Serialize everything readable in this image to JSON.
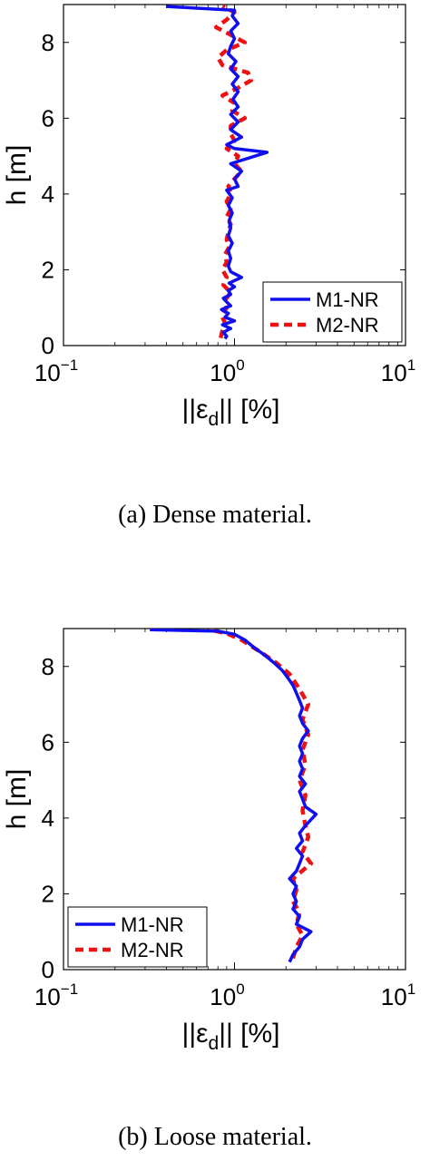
{
  "colors": {
    "m1": "#1010ee",
    "m2": "#ee1111",
    "axis": "#000000"
  },
  "chart_data": [
    {
      "type": "line",
      "caption": "(a) Dense material.",
      "xlabel_pre": "||ε",
      "xlabel_sub": "d",
      "xlabel_post": "|| [%]",
      "ylabel": "h [m]",
      "xscale": "log",
      "xlim": [
        0.1,
        10
      ],
      "ylim": [
        0,
        9
      ],
      "yticks": [
        0,
        2,
        4,
        6,
        8
      ],
      "xticks": [
        {
          "base": "10",
          "exp": "−1",
          "value": 0.1
        },
        {
          "base": "10",
          "exp": "0",
          "value": 1
        },
        {
          "base": "10",
          "exp": "1",
          "value": 10
        }
      ],
      "grid": false,
      "legend": "bottom-right",
      "series": [
        {
          "name": "M1-NR",
          "style": "solid",
          "points": [
            [
              0.88,
              0.18
            ],
            [
              0.9,
              0.25
            ],
            [
              0.86,
              0.35
            ],
            [
              0.95,
              0.45
            ],
            [
              0.85,
              0.55
            ],
            [
              1.0,
              0.65
            ],
            [
              0.88,
              0.75
            ],
            [
              0.92,
              0.85
            ],
            [
              0.84,
              0.95
            ],
            [
              0.95,
              1.05
            ],
            [
              0.9,
              1.15
            ],
            [
              0.86,
              1.25
            ],
            [
              0.95,
              1.35
            ],
            [
              0.92,
              1.45
            ],
            [
              1.0,
              1.55
            ],
            [
              0.93,
              1.65
            ],
            [
              1.1,
              1.8
            ],
            [
              0.95,
              1.95
            ],
            [
              0.92,
              2.1
            ],
            [
              0.95,
              2.3
            ],
            [
              0.92,
              2.5
            ],
            [
              0.97,
              2.7
            ],
            [
              0.92,
              2.9
            ],
            [
              0.95,
              3.1
            ],
            [
              0.93,
              3.3
            ],
            [
              0.97,
              3.5
            ],
            [
              0.92,
              3.7
            ],
            [
              0.97,
              3.9
            ],
            [
              0.9,
              4.1
            ],
            [
              1.05,
              4.2
            ],
            [
              1.0,
              4.4
            ],
            [
              1.1,
              4.6
            ],
            [
              0.95,
              4.8
            ],
            [
              1.55,
              5.1
            ],
            [
              1.0,
              5.2
            ],
            [
              0.9,
              5.3
            ],
            [
              1.1,
              5.5
            ],
            [
              0.95,
              5.7
            ],
            [
              1.05,
              5.9
            ],
            [
              0.95,
              6.1
            ],
            [
              1.05,
              6.3
            ],
            [
              0.98,
              6.5
            ],
            [
              1.05,
              6.7
            ],
            [
              0.97,
              6.9
            ],
            [
              1.05,
              7.1
            ],
            [
              0.95,
              7.3
            ],
            [
              1.02,
              7.5
            ],
            [
              0.92,
              7.7
            ],
            [
              0.95,
              7.9
            ],
            [
              1.0,
              8.1
            ],
            [
              0.95,
              8.3
            ],
            [
              1.05,
              8.5
            ],
            [
              0.97,
              8.7
            ],
            [
              1.0,
              8.85
            ],
            [
              0.4,
              8.95
            ]
          ]
        },
        {
          "name": "M2-NR",
          "style": "dashed",
          "points": [
            [
              0.83,
              0.2
            ],
            [
              0.85,
              0.4
            ],
            [
              0.88,
              0.6
            ],
            [
              0.84,
              0.8
            ],
            [
              0.9,
              1.0
            ],
            [
              0.88,
              1.2
            ],
            [
              0.95,
              1.4
            ],
            [
              0.86,
              1.6
            ],
            [
              0.9,
              1.8
            ],
            [
              0.85,
              2.0
            ],
            [
              0.9,
              2.2
            ],
            [
              0.88,
              2.4
            ],
            [
              0.93,
              2.6
            ],
            [
              0.9,
              2.8
            ],
            [
              0.92,
              3.0
            ],
            [
              0.95,
              3.2
            ],
            [
              0.9,
              3.4
            ],
            [
              0.95,
              3.6
            ],
            [
              0.9,
              3.8
            ],
            [
              0.95,
              4.0
            ],
            [
              0.92,
              4.2
            ],
            [
              1.0,
              4.4
            ],
            [
              1.1,
              4.6
            ],
            [
              1.0,
              4.8
            ],
            [
              1.05,
              5.0
            ],
            [
              0.9,
              5.2
            ],
            [
              1.0,
              5.4
            ],
            [
              0.95,
              5.6
            ],
            [
              0.95,
              5.8
            ],
            [
              1.15,
              6.0
            ],
            [
              0.97,
              6.2
            ],
            [
              1.0,
              6.4
            ],
            [
              0.85,
              6.6
            ],
            [
              1.05,
              6.8
            ],
            [
              1.25,
              7.0
            ],
            [
              1.2,
              7.2
            ],
            [
              0.85,
              7.4
            ],
            [
              0.8,
              7.6
            ],
            [
              0.9,
              7.8
            ],
            [
              1.15,
              8.0
            ],
            [
              0.95,
              8.2
            ],
            [
              0.78,
              8.4
            ],
            [
              0.9,
              8.6
            ],
            [
              1.0,
              8.8
            ],
            [
              0.85,
              8.95
            ]
          ]
        }
      ]
    },
    {
      "type": "line",
      "caption": "(b) Loose material.",
      "xlabel_pre": "||ε",
      "xlabel_sub": "d",
      "xlabel_post": "|| [%]",
      "ylabel": "h [m]",
      "xscale": "log",
      "xlim": [
        0.1,
        10
      ],
      "ylim": [
        0,
        9
      ],
      "yticks": [
        0,
        2,
        4,
        6,
        8
      ],
      "xticks": [
        {
          "base": "10",
          "exp": "−1",
          "value": 0.1
        },
        {
          "base": "10",
          "exp": "0",
          "value": 1
        },
        {
          "base": "10",
          "exp": "1",
          "value": 10
        }
      ],
      "grid": false,
      "legend": "bottom-left",
      "series": [
        {
          "name": "M1-NR",
          "style": "solid",
          "points": [
            [
              2.1,
              0.2
            ],
            [
              2.2,
              0.4
            ],
            [
              2.4,
              0.6
            ],
            [
              2.5,
              0.8
            ],
            [
              2.8,
              1.0
            ],
            [
              2.3,
              1.2
            ],
            [
              2.4,
              1.4
            ],
            [
              2.2,
              1.6
            ],
            [
              2.3,
              1.8
            ],
            [
              2.2,
              2.0
            ],
            [
              2.3,
              2.2
            ],
            [
              2.1,
              2.4
            ],
            [
              2.3,
              2.6
            ],
            [
              2.4,
              2.8
            ],
            [
              2.5,
              3.0
            ],
            [
              2.3,
              3.2
            ],
            [
              2.5,
              3.4
            ],
            [
              2.4,
              3.6
            ],
            [
              2.6,
              3.8
            ],
            [
              3.0,
              4.1
            ],
            [
              2.6,
              4.3
            ],
            [
              2.5,
              4.5
            ],
            [
              2.4,
              4.7
            ],
            [
              2.6,
              4.9
            ],
            [
              2.4,
              5.1
            ],
            [
              2.5,
              5.3
            ],
            [
              2.4,
              5.5
            ],
            [
              2.5,
              5.7
            ],
            [
              2.4,
              5.9
            ],
            [
              2.5,
              6.1
            ],
            [
              2.7,
              6.3
            ],
            [
              2.5,
              6.5
            ],
            [
              2.4,
              6.7
            ],
            [
              2.5,
              6.9
            ],
            [
              2.4,
              7.1
            ],
            [
              2.3,
              7.3
            ],
            [
              2.2,
              7.5
            ],
            [
              2.05,
              7.7
            ],
            [
              1.9,
              7.9
            ],
            [
              1.7,
              8.1
            ],
            [
              1.5,
              8.3
            ],
            [
              1.3,
              8.5
            ],
            [
              1.15,
              8.7
            ],
            [
              1.0,
              8.85
            ],
            [
              0.8,
              8.93
            ],
            [
              0.32,
              8.97
            ]
          ]
        },
        {
          "name": "M2-NR",
          "style": "dashed",
          "points": [
            [
              2.2,
              0.3
            ],
            [
              2.3,
              0.6
            ],
            [
              2.5,
              0.9
            ],
            [
              2.3,
              1.2
            ],
            [
              2.4,
              1.5
            ],
            [
              2.2,
              1.8
            ],
            [
              2.3,
              2.1
            ],
            [
              2.2,
              2.4
            ],
            [
              2.8,
              2.8
            ],
            [
              2.5,
              3.1
            ],
            [
              2.7,
              3.5
            ],
            [
              2.6,
              3.8
            ],
            [
              2.5,
              4.2
            ],
            [
              2.6,
              4.6
            ],
            [
              2.4,
              5.0
            ],
            [
              2.6,
              5.4
            ],
            [
              2.5,
              5.8
            ],
            [
              2.7,
              6.2
            ],
            [
              2.5,
              6.6
            ],
            [
              2.7,
              7.0
            ],
            [
              2.4,
              7.4
            ],
            [
              2.1,
              7.8
            ],
            [
              1.75,
              8.1
            ],
            [
              1.4,
              8.4
            ],
            [
              1.1,
              8.7
            ],
            [
              0.9,
              8.87
            ],
            [
              0.75,
              8.95
            ]
          ]
        }
      ]
    }
  ]
}
